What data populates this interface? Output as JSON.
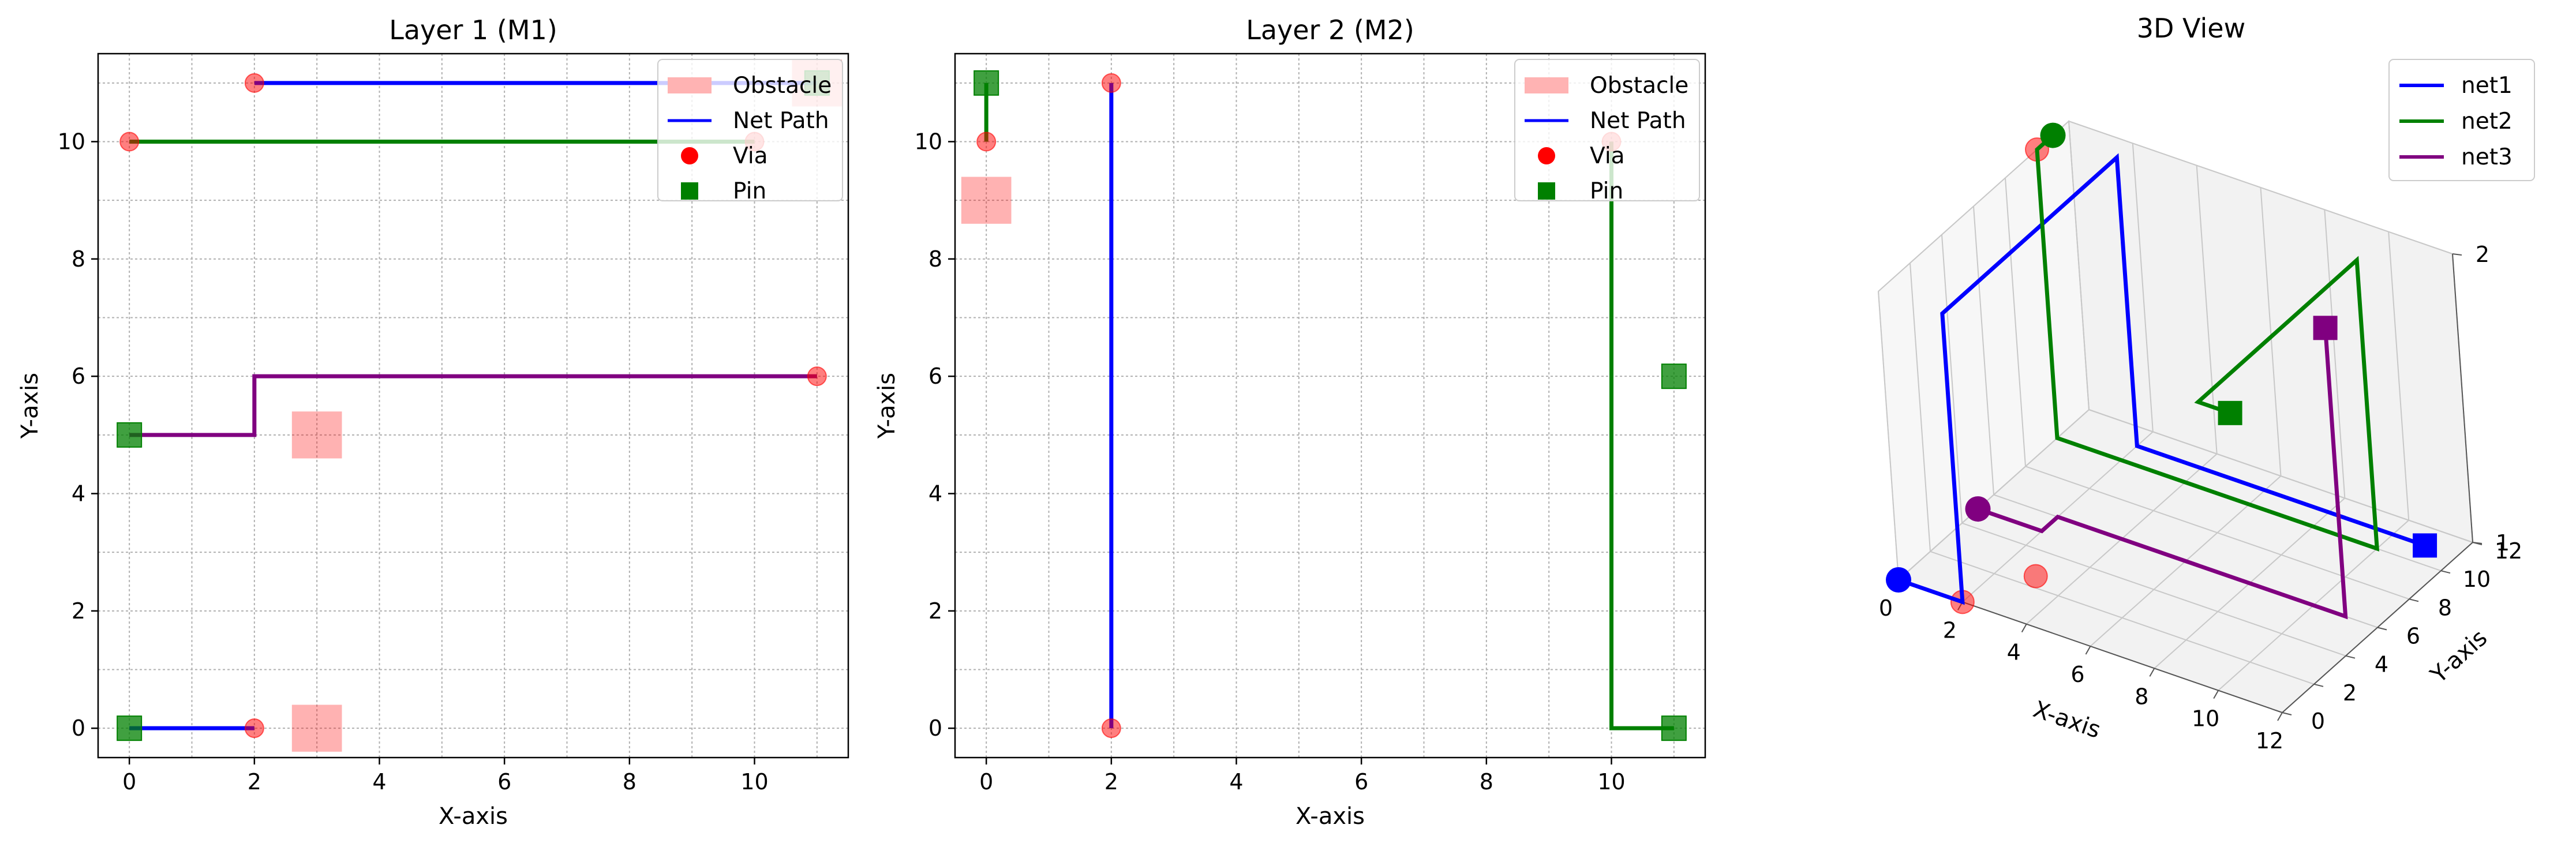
{
  "chart_data": [
    {
      "type": "scatter",
      "title": "Layer 1 (M1)",
      "xlabel": "X-axis",
      "ylabel": "Y-axis",
      "xlim": [
        -0.5,
        11.5
      ],
      "ylim": [
        -0.5,
        11.5
      ],
      "xticks": [
        0,
        2,
        4,
        6,
        8,
        10
      ],
      "yticks": [
        0,
        2,
        4,
        6,
        8,
        10
      ],
      "grid": true,
      "legend_position": "top-right",
      "legend": [
        {
          "label": "Obstacle",
          "kind": "patch",
          "color": "#ffb3b3"
        },
        {
          "label": "Net Path",
          "kind": "line",
          "color": "#0000ff"
        },
        {
          "label": "Via",
          "kind": "circle",
          "color": "#ff0000"
        },
        {
          "label": "Pin",
          "kind": "square",
          "color": "#008000"
        }
      ],
      "obstacles": [
        {
          "x": 3,
          "y": 5,
          "w": 0.8,
          "h": 0.8
        },
        {
          "x": 3,
          "y": 0,
          "w": 0.8,
          "h": 0.8
        },
        {
          "x": 11,
          "y": 11,
          "w": 0.8,
          "h": 0.8
        }
      ],
      "paths": [
        {
          "color": "#0000ff",
          "points": [
            [
              2,
              11
            ],
            [
              11,
              11
            ]
          ]
        },
        {
          "color": "#008000",
          "points": [
            [
              0,
              10
            ],
            [
              10,
              10
            ]
          ]
        },
        {
          "color": "#800080",
          "points": [
            [
              0,
              5
            ],
            [
              2,
              5
            ],
            [
              2,
              6
            ],
            [
              11,
              6
            ]
          ]
        },
        {
          "color": "#0000ff",
          "points": [
            [
              0,
              0
            ],
            [
              2,
              0
            ]
          ]
        }
      ],
      "vias": [
        [
          2,
          11
        ],
        [
          0,
          10
        ],
        [
          10,
          10
        ],
        [
          11,
          6
        ],
        [
          2,
          0
        ]
      ],
      "pins": [
        {
          "x": 0,
          "y": 5,
          "color": "#008000"
        },
        {
          "x": 0,
          "y": 0,
          "color": "#008000"
        },
        {
          "x": 11,
          "y": 11,
          "color": "#008000"
        }
      ]
    },
    {
      "type": "scatter",
      "title": "Layer 2 (M2)",
      "xlabel": "X-axis",
      "ylabel": "Y-axis",
      "xlim": [
        -0.5,
        11.5
      ],
      "ylim": [
        -0.5,
        11.5
      ],
      "xticks": [
        0,
        2,
        4,
        6,
        8,
        10
      ],
      "yticks": [
        0,
        2,
        4,
        6,
        8,
        10
      ],
      "grid": true,
      "legend_position": "top-right",
      "legend": [
        {
          "label": "Obstacle",
          "kind": "patch",
          "color": "#ffb3b3"
        },
        {
          "label": "Net Path",
          "kind": "line",
          "color": "#0000ff"
        },
        {
          "label": "Via",
          "kind": "circle",
          "color": "#ff0000"
        },
        {
          "label": "Pin",
          "kind": "square",
          "color": "#008000"
        }
      ],
      "obstacles": [
        {
          "x": 0,
          "y": 9,
          "w": 0.8,
          "h": 0.8
        }
      ],
      "paths": [
        {
          "color": "#008000",
          "points": [
            [
              0,
              11
            ],
            [
              0,
              10
            ]
          ]
        },
        {
          "color": "#0000ff",
          "points": [
            [
              2,
              11
            ],
            [
              2,
              0
            ]
          ]
        },
        {
          "color": "#008000",
          "points": [
            [
              10,
              10
            ],
            [
              10,
              0
            ],
            [
              11,
              0
            ]
          ]
        }
      ],
      "vias": [
        [
          0,
          10
        ],
        [
          2,
          11
        ],
        [
          2,
          0
        ],
        [
          10,
          10
        ]
      ],
      "pins": [
        {
          "x": 0,
          "y": 11,
          "color": "#008000"
        },
        {
          "x": 11,
          "y": 6,
          "color": "#008000"
        },
        {
          "x": 11,
          "y": 0,
          "color": "#008000"
        }
      ]
    },
    {
      "type": "line",
      "title": "3D View",
      "xlabel": "X-axis",
      "ylabel": "Y-axis",
      "xlim": [
        0,
        12
      ],
      "ylim": [
        0,
        12
      ],
      "zlim": [
        1,
        2
      ],
      "xticks": [
        0,
        2,
        4,
        6,
        8,
        10,
        12
      ],
      "yticks": [
        0,
        2,
        4,
        6,
        8,
        10,
        12
      ],
      "zticks": [
        1,
        2
      ],
      "grid": true,
      "legend_position": "top-right",
      "series": [
        {
          "name": "net1",
          "color": "#0000ff",
          "points": [
            [
              0,
              0,
              1
            ],
            [
              2,
              0,
              1
            ],
            [
              2,
              0,
              2
            ],
            [
              2,
              11,
              2
            ],
            [
              2,
              11,
              1
            ],
            [
              11,
              11,
              1
            ]
          ]
        },
        {
          "name": "net2",
          "color": "#008000",
          "points": [
            [
              0,
              11,
              2
            ],
            [
              0,
              10,
              2
            ],
            [
              0,
              10,
              1
            ],
            [
              10,
              10,
              1
            ],
            [
              10,
              10,
              2
            ],
            [
              10,
              0,
              2
            ],
            [
              11,
              0,
              2
            ]
          ]
        },
        {
          "name": "net3",
          "color": "#800080",
          "points": [
            [
              0,
              5,
              1
            ],
            [
              2,
              5,
              1
            ],
            [
              2,
              6,
              1
            ],
            [
              11,
              6,
              1
            ],
            [
              11,
              6,
              2
            ]
          ]
        }
      ],
      "endpoints": [
        {
          "p": [
            0,
            0,
            1
          ],
          "color": "#0000ff",
          "marker": "circle"
        },
        {
          "p": [
            11,
            11,
            1
          ],
          "color": "#0000ff",
          "marker": "square"
        },
        {
          "p": [
            0,
            11,
            2
          ],
          "color": "#008000",
          "marker": "circle"
        },
        {
          "p": [
            11,
            0,
            2
          ],
          "color": "#008000",
          "marker": "square"
        },
        {
          "p": [
            0,
            5,
            1
          ],
          "color": "#800080",
          "marker": "circle"
        },
        {
          "p": [
            11,
            6,
            2
          ],
          "color": "#800080",
          "marker": "square"
        }
      ],
      "vias": [
        [
          2,
          0,
          1
        ],
        [
          3,
          2.6,
          1
        ],
        [
          0,
          10,
          2
        ]
      ]
    }
  ]
}
